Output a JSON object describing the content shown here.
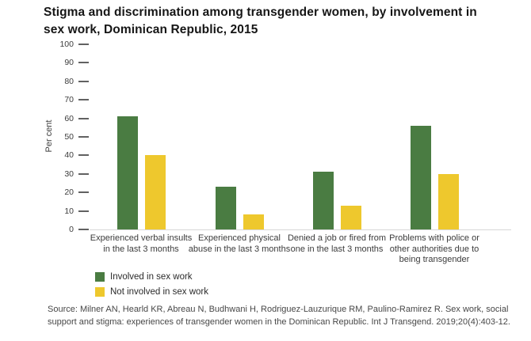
{
  "page": {
    "title": "Stigma and discrimination among transgender women, by involvement in\nsex work, Dominican Republic, 2015",
    "source": "Source: Milner AN, Hearld KR, Abreau N, Budhwani H, Rodriguez-Lauzurique RM, Paulino-Ramirez R. Sex work, social\nsupport and stigma: experiences of transgender women in the Dominican Republic. Int J Transgend. 2019;20(4):403-12."
  },
  "chart_data": {
    "type": "bar",
    "title": "Stigma and discrimination among transgender women, by involvement in sex work, Dominican Republic, 2015",
    "xlabel": "",
    "ylabel": "Per cent",
    "ylim": [
      0,
      100
    ],
    "yticks": [
      0,
      10,
      20,
      30,
      40,
      50,
      60,
      70,
      80,
      90,
      100
    ],
    "grid": false,
    "legend_position": "bottom-left",
    "categories": [
      "Experienced verbal insults\nin the last 3 months",
      "Experienced physical\nabuse in the last 3 months",
      "Denied a job or fired from\none in the last 3 months",
      "Problems with police or\nother authorities due to\nbeing transgender"
    ],
    "series": [
      {
        "name": "Involved in sex work",
        "color": "#4a7c42",
        "values": [
          61,
          23,
          31,
          56
        ]
      },
      {
        "name": "Not involved in sex work",
        "color": "#eec82d",
        "values": [
          40,
          8,
          13,
          30
        ]
      }
    ],
    "source": "Source: Milner AN, Hearld KR, Abreau N, Budhwani H, Rodriguez-Lauzurique RM, Paulino-Ramirez R. Sex work, social support and stigma: experiences of transgender women in the Dominican Republic. Int J Transgend. 2019;20(4):403-12."
  }
}
